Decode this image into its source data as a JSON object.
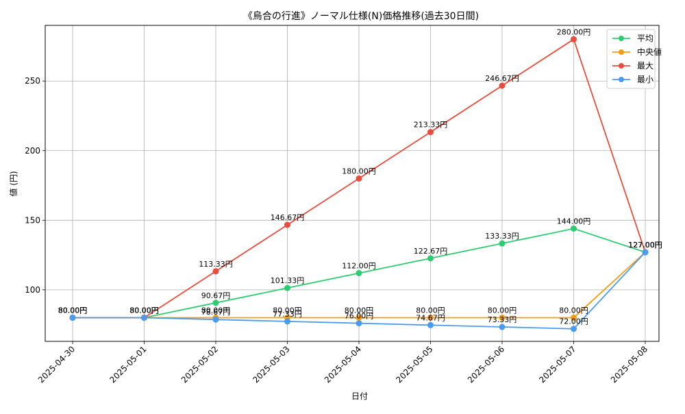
{
  "chart_data": {
    "type": "line",
    "title": "《烏合の行進》ノーマル仕様(N)価格推移(過去30日間)",
    "xlabel": "日付",
    "ylabel": "値 (円)",
    "categories": [
      "2025-04-30",
      "2025-05-01",
      "2025-05-02",
      "2025-05-03",
      "2025-05-04",
      "2025-05-05",
      "2025-05-06",
      "2025-05-07",
      "2025-05-08"
    ],
    "ylim": [
      63,
      290
    ],
    "yticks": [
      100,
      150,
      200,
      250
    ],
    "grid": true,
    "legend_position": "top-right",
    "series": [
      {
        "name": "平均",
        "color": "#2ecc71",
        "values": [
          80,
          80,
          90.67,
          101.33,
          112,
          122.67,
          133.33,
          144,
          127
        ],
        "labels": [
          "80.00円",
          "80.00円",
          "90.67円",
          "101.33円",
          "112.00円",
          "122.67円",
          "133.33円",
          "144.00円",
          "127.00円"
        ]
      },
      {
        "name": "中央値",
        "color": "#f39c12",
        "values": [
          80,
          80,
          80,
          80,
          80,
          80,
          80,
          80,
          127
        ],
        "labels": [
          "80.00円",
          "80.00円",
          "80.00円",
          "80.00円",
          "80.00円",
          "80.00円",
          "80.00円",
          "80.00円",
          "127.00円"
        ]
      },
      {
        "name": "最大",
        "color": "#e74c3c",
        "values": [
          80,
          80,
          113.33,
          146.67,
          180,
          213.33,
          246.67,
          280,
          127
        ],
        "labels": [
          "80.00円",
          "80.00円",
          "113.33円",
          "146.67円",
          "180.00円",
          "213.33円",
          "246.67円",
          "280.00円",
          "127.00円"
        ]
      },
      {
        "name": "最小",
        "color": "#4a9bf0",
        "values": [
          80,
          80,
          78.67,
          77.33,
          76,
          74.67,
          73.33,
          72,
          127
        ],
        "labels": [
          "80.00円",
          "80.00円",
          "78.67円",
          "77.33円",
          "76.00円",
          "74.67円",
          "73.33円",
          "72.00円",
          "127.00円"
        ]
      }
    ]
  }
}
